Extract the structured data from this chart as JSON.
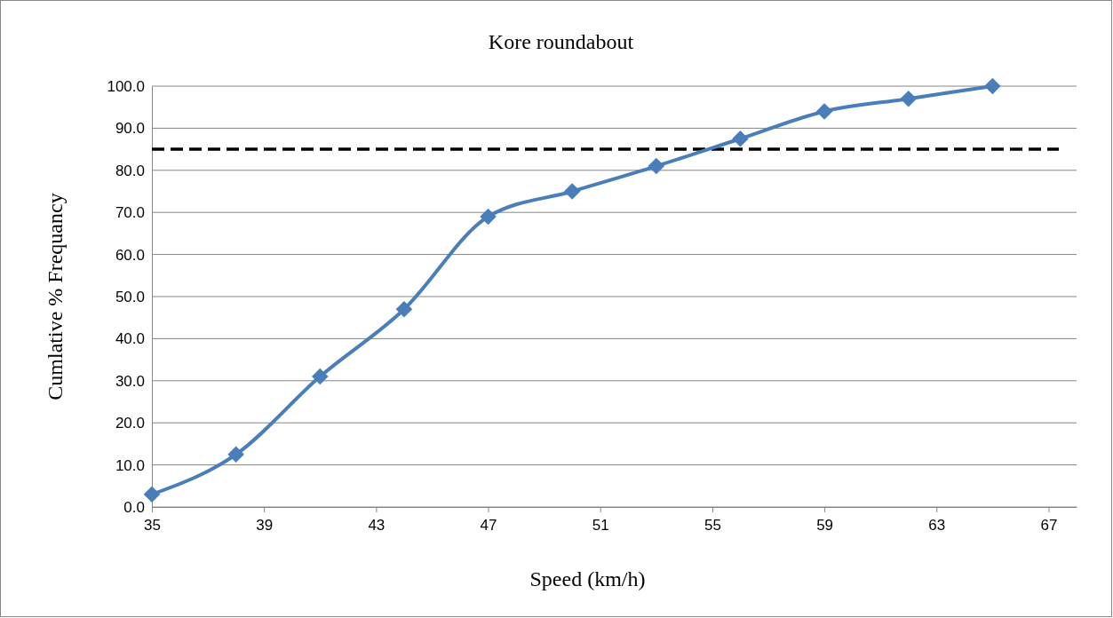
{
  "chart_data": {
    "type": "line",
    "title": "Kore roundabout",
    "xlabel": "Speed (km/h)",
    "ylabel": "Cumlative % Frequancy",
    "x": [
      35,
      38,
      41,
      44,
      47,
      50,
      53,
      56,
      59,
      62,
      65
    ],
    "series": [
      {
        "color": "#4a7ebb",
        "values": [
          3,
          12.5,
          31,
          47,
          69,
          75,
          81,
          87.5,
          94,
          97,
          100
        ]
      }
    ],
    "xlim": [
      35,
      68
    ],
    "xticks": [
      35,
      39,
      43,
      47,
      51,
      55,
      59,
      63,
      67
    ],
    "ylim": [
      0,
      100
    ],
    "yticks": [
      {
        "value": 0,
        "label": "0.0"
      },
      {
        "value": 10,
        "label": "10.0"
      },
      {
        "value": 20,
        "label": "20.0"
      },
      {
        "value": 30,
        "label": "30.0"
      },
      {
        "value": 40,
        "label": "40.0"
      },
      {
        "value": 50,
        "label": "50.0"
      },
      {
        "value": 60,
        "label": "60.0"
      },
      {
        "value": 70,
        "label": "70.0"
      },
      {
        "value": 80,
        "label": "80.0"
      },
      {
        "value": 90,
        "label": "90.0"
      },
      {
        "value": 100,
        "label": "100.0"
      }
    ],
    "ref_lines": [
      {
        "axis": "y",
        "value": 85,
        "color": "#000000",
        "line_style": "dashed"
      }
    ],
    "grid": "y",
    "marker": "diamond",
    "line_style": "solid"
  }
}
